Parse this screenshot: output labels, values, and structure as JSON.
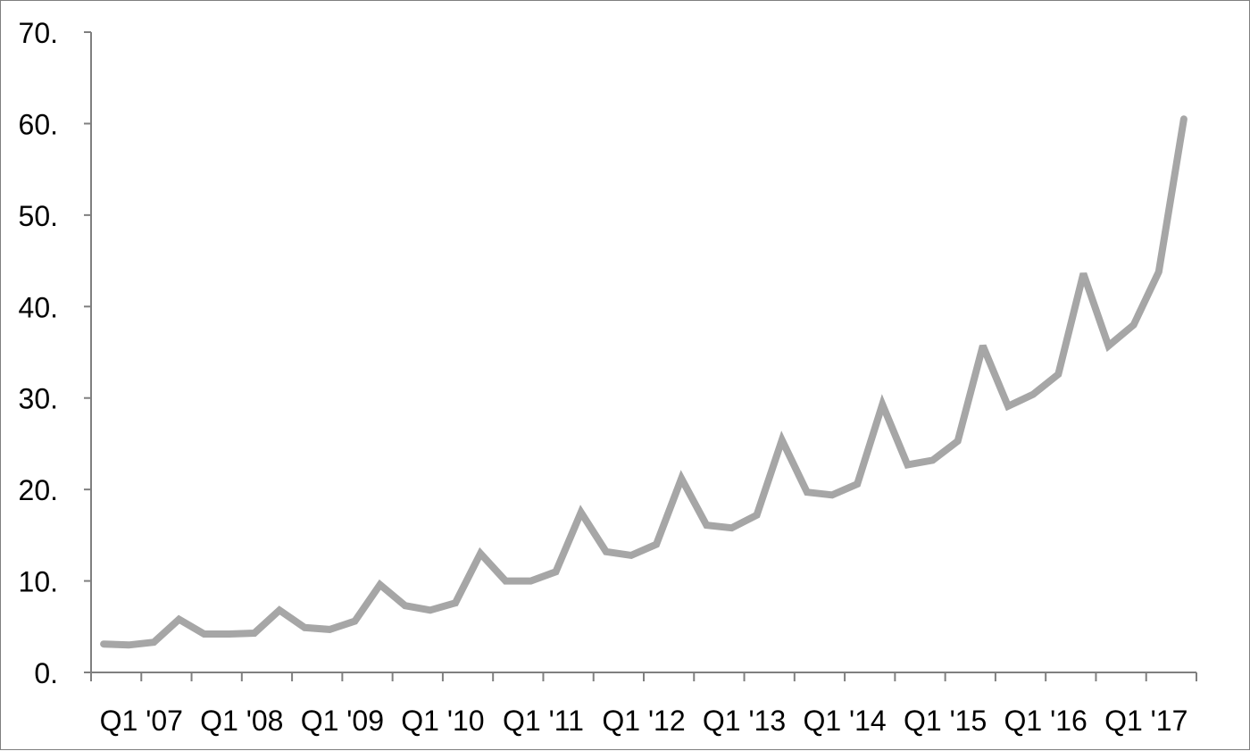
{
  "chart_data": {
    "type": "line",
    "title": "",
    "xlabel": "",
    "ylabel": "",
    "ylim": [
      0,
      70
    ],
    "y_ticks": [
      "0.",
      "10.",
      "20.",
      "30.",
      "40.",
      "50.",
      "60.",
      "70."
    ],
    "x_tick_labels": [
      "Q1 '07",
      "Q1 '08",
      "Q1 '09",
      "Q1 '10",
      "Q1 '11",
      "Q1 '12",
      "Q1 '13",
      "Q1 '14",
      "Q1 '15",
      "Q1 '16",
      "Q1 '17"
    ],
    "grid": false,
    "line_color": "#a6a6a6",
    "axis_color": "#7f7f7f",
    "series": [
      {
        "values": [
          3.1,
          3.0,
          3.3,
          5.8,
          4.2,
          4.2,
          4.3,
          6.8,
          4.9,
          4.7,
          5.6,
          9.6,
          7.3,
          6.8,
          7.6,
          13.0,
          10.0,
          10.0,
          11.0,
          17.5,
          13.2,
          12.8,
          14.0,
          21.2,
          16.1,
          15.8,
          17.2,
          25.4,
          19.7,
          19.4,
          20.6,
          29.3,
          22.7,
          23.2,
          25.3,
          35.7,
          29.1,
          30.4,
          32.6,
          43.6,
          35.7,
          38.0,
          43.8,
          60.5
        ]
      }
    ]
  }
}
